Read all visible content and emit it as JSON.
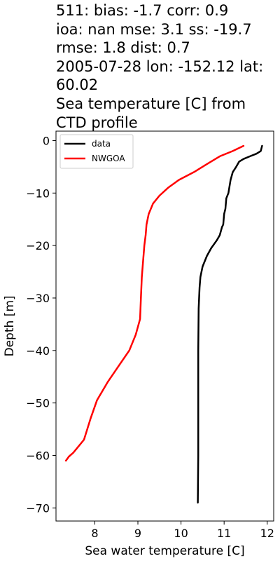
{
  "title_lines": [
    "511: bias: -1.7  corr: 0.9",
    "ioa: nan  mse: 3.1  ss: -19.7",
    "rmse: 1.8  dist: 0.7",
    "2005-07-28 lon: -152.12 lat:",
    "60.02",
    "Sea temperature [C] from",
    "CTD profile"
  ],
  "chart_data": {
    "type": "line",
    "xlabel": "Sea water temperature [C]",
    "ylabel": "Depth [m]",
    "xlim": [
      7.1,
      12.15
    ],
    "ylim": [
      -72.5,
      1.8
    ],
    "xticks": [
      8,
      9,
      10,
      11,
      12
    ],
    "yticks": [
      0,
      -10,
      -20,
      -30,
      -40,
      -50,
      -60,
      -70
    ],
    "xtick_labels": [
      "8",
      "9",
      "10",
      "11",
      "12"
    ],
    "ytick_labels": [
      "0",
      "−10",
      "−20",
      "−30",
      "−40",
      "−50",
      "−60",
      "−70"
    ],
    "grid": false,
    "legend_position": "top-left",
    "series": [
      {
        "name": "data",
        "color": "#000000",
        "points": [
          [
            11.88,
            -1.0
          ],
          [
            11.85,
            -2.0
          ],
          [
            11.75,
            -2.5
          ],
          [
            11.6,
            -3.0
          ],
          [
            11.45,
            -3.5
          ],
          [
            11.35,
            -4.0
          ],
          [
            11.28,
            -5.0
          ],
          [
            11.2,
            -6.0
          ],
          [
            11.15,
            -7.5
          ],
          [
            11.1,
            -10.0
          ],
          [
            11.05,
            -11.0
          ],
          [
            11.03,
            -13.0
          ],
          [
            11.0,
            -14.0
          ],
          [
            10.98,
            -16.0
          ],
          [
            10.95,
            -16.5
          ],
          [
            10.9,
            -18.0
          ],
          [
            10.83,
            -19.0
          ],
          [
            10.7,
            -20.5
          ],
          [
            10.6,
            -22.0
          ],
          [
            10.5,
            -24.0
          ],
          [
            10.45,
            -26.0
          ],
          [
            10.43,
            -28.0
          ],
          [
            10.41,
            -32.0
          ],
          [
            10.4,
            -40.0
          ],
          [
            10.4,
            -50.0
          ],
          [
            10.4,
            -60.0
          ],
          [
            10.39,
            -69.0
          ]
        ]
      },
      {
        "name": "NWGOA",
        "color": "#ff0000",
        "points": [
          [
            11.45,
            -1.0
          ],
          [
            11.2,
            -2.0
          ],
          [
            10.9,
            -3.0
          ],
          [
            10.6,
            -4.5
          ],
          [
            10.3,
            -6.0
          ],
          [
            9.95,
            -7.5
          ],
          [
            9.7,
            -9.0
          ],
          [
            9.5,
            -10.5
          ],
          [
            9.35,
            -12.0
          ],
          [
            9.25,
            -14.0
          ],
          [
            9.2,
            -16.0
          ],
          [
            9.18,
            -18.0
          ],
          [
            9.15,
            -20.0
          ],
          [
            9.12,
            -23.0
          ],
          [
            9.09,
            -26.0
          ],
          [
            9.07,
            -30.0
          ],
          [
            9.05,
            -34.0
          ],
          [
            8.95,
            -37.0
          ],
          [
            8.8,
            -40.0
          ],
          [
            8.55,
            -43.0
          ],
          [
            8.3,
            -46.0
          ],
          [
            8.05,
            -49.5
          ],
          [
            7.9,
            -53.0
          ],
          [
            7.75,
            -57.0
          ],
          [
            7.5,
            -59.5
          ],
          [
            7.4,
            -60.2
          ],
          [
            7.33,
            -61.0
          ]
        ]
      }
    ]
  }
}
